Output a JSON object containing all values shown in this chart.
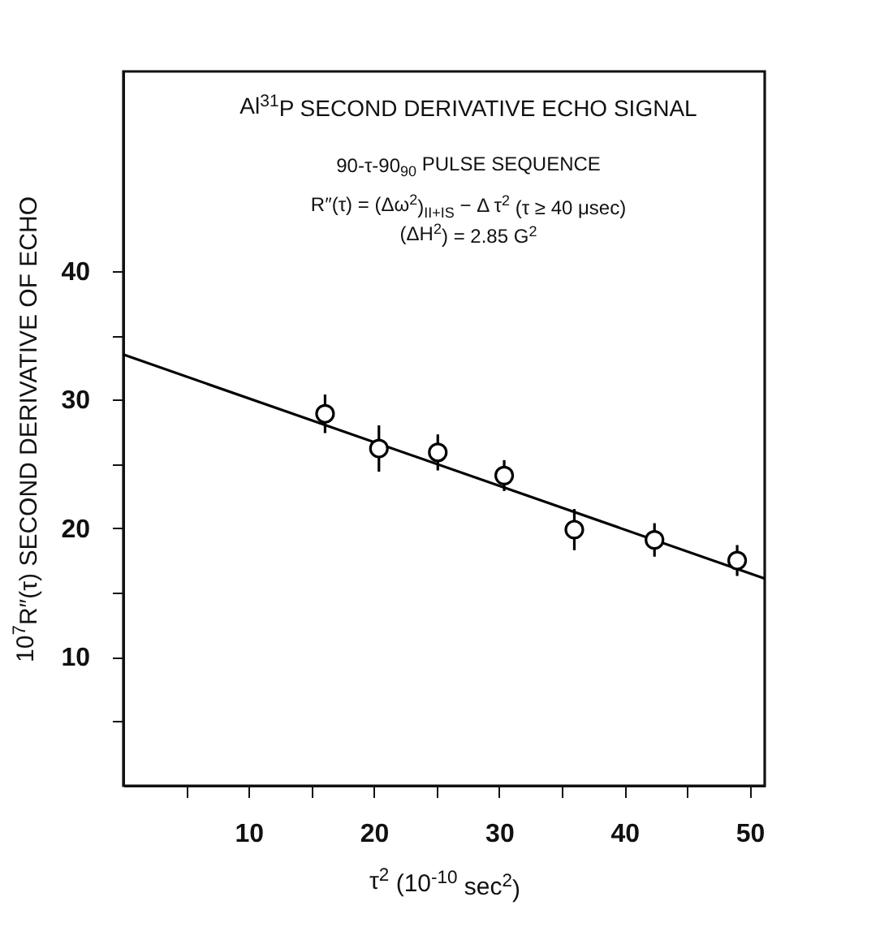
{
  "chart_data": {
    "type": "scatter",
    "title": "Al$^{31}$P SECOND DERIVATIVE ECHO SIGNAL",
    "annotations": [
      "90-τ-90$_{90}$ PULSE SEQUENCE",
      "R″(τ) = (Δω$^{2}$)$_{II+IS}$ − Δ τ$^{2}$ (τ ≥ 40 μsec)",
      "(ΔH$^{2}$) = 2.85 G$^{2}$"
    ],
    "xlabel": "τ$^{2}$ (10$^{-10}$ sec$^{2}$)",
    "ylabel": "10$^{7}$R″(τ)  SECOND DERIVATIVE OF ECHO",
    "series": [
      {
        "color": "#000000",
        "marker": "circle",
        "x": [
          16.1,
          20.4,
          25.1,
          30.4,
          36.0,
          42.4,
          49.0
        ],
        "values": [
          28.9,
          26.2,
          25.9,
          24.1,
          19.9,
          19.1,
          17.5
        ],
        "errors": [
          1.5,
          1.8,
          1.4,
          1.2,
          1.6,
          1.3,
          1.2
        ]
      },
      {
        "type": "line",
        "color": "#000000",
        "x": [
          0,
          51.2
        ],
        "values": [
          33.5,
          16.1
        ]
      }
    ],
    "xlim": [
      0,
      51.2
    ],
    "ylim": [
      0,
      55.5
    ],
    "xticks": [
      {
        "value": 5,
        "label": null
      },
      10,
      {
        "value": 15,
        "label": null
      },
      20,
      {
        "value": 25,
        "label": null
      },
      30,
      {
        "value": 35,
        "label": null
      },
      40,
      {
        "value": 45,
        "label": null
      },
      50
    ],
    "yticks": [
      {
        "value": 5,
        "label": null
      },
      10,
      {
        "value": 15,
        "label": null
      },
      20,
      {
        "value": 25,
        "label": null
      },
      30,
      {
        "value": 35,
        "label": null
      },
      40
    ],
    "grid": false
  }
}
